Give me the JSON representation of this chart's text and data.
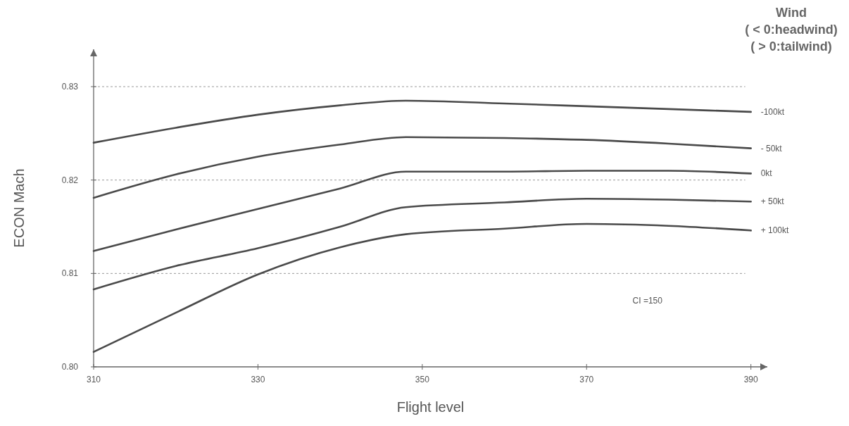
{
  "chart_data": {
    "type": "line",
    "xlabel": "Flight level",
    "ylabel": "ECON Mach",
    "legend_title": "Wind\n( < 0:headwind)\n( > 0:tailwind)",
    "x": [
      310,
      320,
      330,
      340,
      348,
      360,
      370,
      380,
      390
    ],
    "series": [
      {
        "name": "-100kt",
        "color": "#4a4a4a",
        "values": [
          0.824,
          0.8256,
          0.827,
          0.828,
          0.8285,
          0.8282,
          0.8279,
          0.8276,
          0.8273
        ]
      },
      {
        "name": "- 50kt",
        "color": "#4a4a4a",
        "values": [
          0.8181,
          0.8206,
          0.8225,
          0.8238,
          0.8246,
          0.8245,
          0.8243,
          0.8239,
          0.8234
        ]
      },
      {
        "name": "0kt",
        "color": "#4a4a4a",
        "values": [
          0.8124,
          0.8147,
          0.8169,
          0.8191,
          0.8209,
          0.8209,
          0.821,
          0.821,
          0.8207
        ]
      },
      {
        "name": "+ 50kt",
        "color": "#4a4a4a",
        "values": [
          0.8083,
          0.8108,
          0.8127,
          0.815,
          0.8171,
          0.8176,
          0.818,
          0.8179,
          0.8177
        ]
      },
      {
        "name": "+ 100kt",
        "color": "#4a4a4a",
        "values": [
          0.8016,
          0.8058,
          0.8099,
          0.8128,
          0.8142,
          0.8148,
          0.8153,
          0.8151,
          0.8146
        ]
      }
    ],
    "xlim": [
      310,
      392
    ],
    "ylim": [
      0.8,
      0.834
    ],
    "xticks": [
      310,
      330,
      350,
      370,
      390
    ],
    "yticks": [
      {
        "value": 0.8,
        "label": "0.80"
      },
      0.81,
      0.82,
      0.83
    ],
    "grid": "y",
    "marker": "none",
    "line_style": "solid",
    "annotations": [
      "CI =150"
    ]
  }
}
